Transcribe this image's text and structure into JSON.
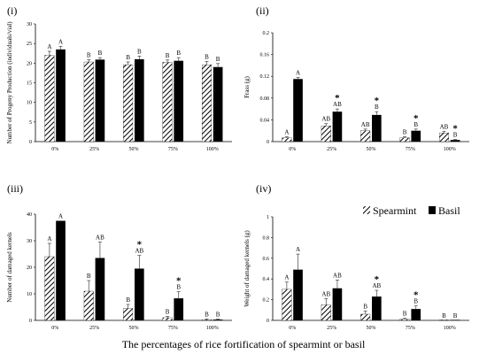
{
  "panels": {
    "p1": {
      "label": "(i)"
    },
    "p2": {
      "label": "(ii)"
    },
    "p3": {
      "label": "(iii)"
    },
    "p4": {
      "label": "(iv)"
    }
  },
  "legend": {
    "spearmint": "Spearmint",
    "basil": "Basil"
  },
  "caption": "The percentages of rice fortification of spearmint or basil",
  "colors": {
    "basil": "#000000",
    "spearmint_hatch": "#000000",
    "background": "#ffffff"
  },
  "chart_data": [
    {
      "type": "bar",
      "title": "",
      "ylabel": "Number of Progeny Production (individuals/vial)",
      "xlabel": "",
      "categories": [
        "0%",
        "25%",
        "50%",
        "75%",
        "100%"
      ],
      "ylim": [
        0,
        30
      ],
      "yticks": [
        "0",
        "5",
        "10",
        "15",
        "20",
        "25",
        "30"
      ],
      "series": [
        {
          "name": "Spearmint",
          "values": [
            22,
            20.3,
            19.6,
            20.2,
            19.6
          ],
          "errors": [
            1.0,
            0.6,
            0.7,
            0.6,
            0.8
          ]
        },
        {
          "name": "Basil",
          "values": [
            23.5,
            20.9,
            21.0,
            20.6,
            19.0
          ],
          "errors": [
            0.8,
            0.5,
            0.8,
            0.8,
            0.9
          ]
        }
      ],
      "sig_labels": [
        [
          "A",
          "A"
        ],
        [
          "B",
          "B"
        ],
        [
          "B",
          "B"
        ],
        [
          "B",
          "B"
        ],
        [
          "B",
          "B"
        ]
      ],
      "stars": [
        false,
        false,
        false,
        false,
        false
      ]
    },
    {
      "type": "bar",
      "title": "",
      "ylabel": "Frass (g)",
      "xlabel": "",
      "categories": [
        "0%",
        "25%",
        "50%",
        "75%",
        "100%"
      ],
      "ylim": [
        0,
        0.2
      ],
      "yticks": [
        "0",
        "0.04",
        "0.08",
        "0.12",
        "0.16",
        "0.2"
      ],
      "series": [
        {
          "name": "Spearmint",
          "values": [
            0.007,
            0.029,
            0.02,
            0.007,
            0.016
          ],
          "errors": [
            0.002,
            0.004,
            0.003,
            0.002,
            0.003
          ]
        },
        {
          "name": "Basil",
          "values": [
            0.115,
            0.055,
            0.049,
            0.02,
            0.003
          ],
          "errors": [
            0.003,
            0.005,
            0.006,
            0.003,
            0.001
          ]
        }
      ],
      "sig_labels": [
        [
          "A",
          "A"
        ],
        [
          "AB",
          "AB"
        ],
        [
          "AB",
          "B"
        ],
        [
          "B",
          "B"
        ],
        [
          "AB",
          "B"
        ]
      ],
      "stars": [
        false,
        true,
        true,
        true,
        true
      ]
    },
    {
      "type": "bar",
      "title": "",
      "ylabel": "Number of damaged kernels",
      "xlabel": "",
      "categories": [
        "0%",
        "25%",
        "50%",
        "75%",
        "100%"
      ],
      "ylim": [
        0,
        40
      ],
      "yticks": [
        "0",
        "10",
        "20",
        "30",
        "40"
      ],
      "series": [
        {
          "name": "Spearmint",
          "values": [
            24,
            11,
            4.5,
            1.0,
            0.3
          ],
          "errors": [
            5,
            4,
            1.5,
            0.5,
            0.2
          ]
        },
        {
          "name": "Basil",
          "values": [
            37.5,
            23.5,
            19.5,
            8.3,
            0.3
          ],
          "errors": [
            0,
            6,
            5,
            2.5,
            0.2
          ]
        }
      ],
      "sig_labels": [
        [
          "A",
          "A"
        ],
        [
          "B",
          "AB"
        ],
        [
          "B",
          "AB"
        ],
        [
          "B",
          "B"
        ],
        [
          "B",
          "B"
        ]
      ],
      "stars": [
        false,
        false,
        true,
        true,
        false
      ]
    },
    {
      "type": "bar",
      "title": "",
      "ylabel": "Weight of damaged kernels (g)",
      "xlabel": "",
      "categories": [
        "0%",
        "25%",
        "50%",
        "75%",
        "100%"
      ],
      "ylim": [
        0,
        1
      ],
      "yticks": [
        "0",
        "0.2",
        "0.4",
        "0.6",
        "0.8",
        "1"
      ],
      "series": [
        {
          "name": "Spearmint",
          "values": [
            0.3,
            0.15,
            0.06,
            0.01,
            0.0
          ],
          "errors": [
            0.07,
            0.06,
            0.03,
            0.01,
            0.0
          ]
        },
        {
          "name": "Basil",
          "values": [
            0.49,
            0.31,
            0.23,
            0.11,
            0.0
          ],
          "errors": [
            0.15,
            0.08,
            0.06,
            0.03,
            0.0
          ]
        }
      ],
      "sig_labels": [
        [
          "A",
          "A"
        ],
        [
          "AB",
          "AB"
        ],
        [
          "B",
          "AB"
        ],
        [
          "B",
          "B"
        ],
        [
          "B",
          "B"
        ]
      ],
      "stars": [
        false,
        false,
        true,
        true,
        false
      ]
    }
  ]
}
